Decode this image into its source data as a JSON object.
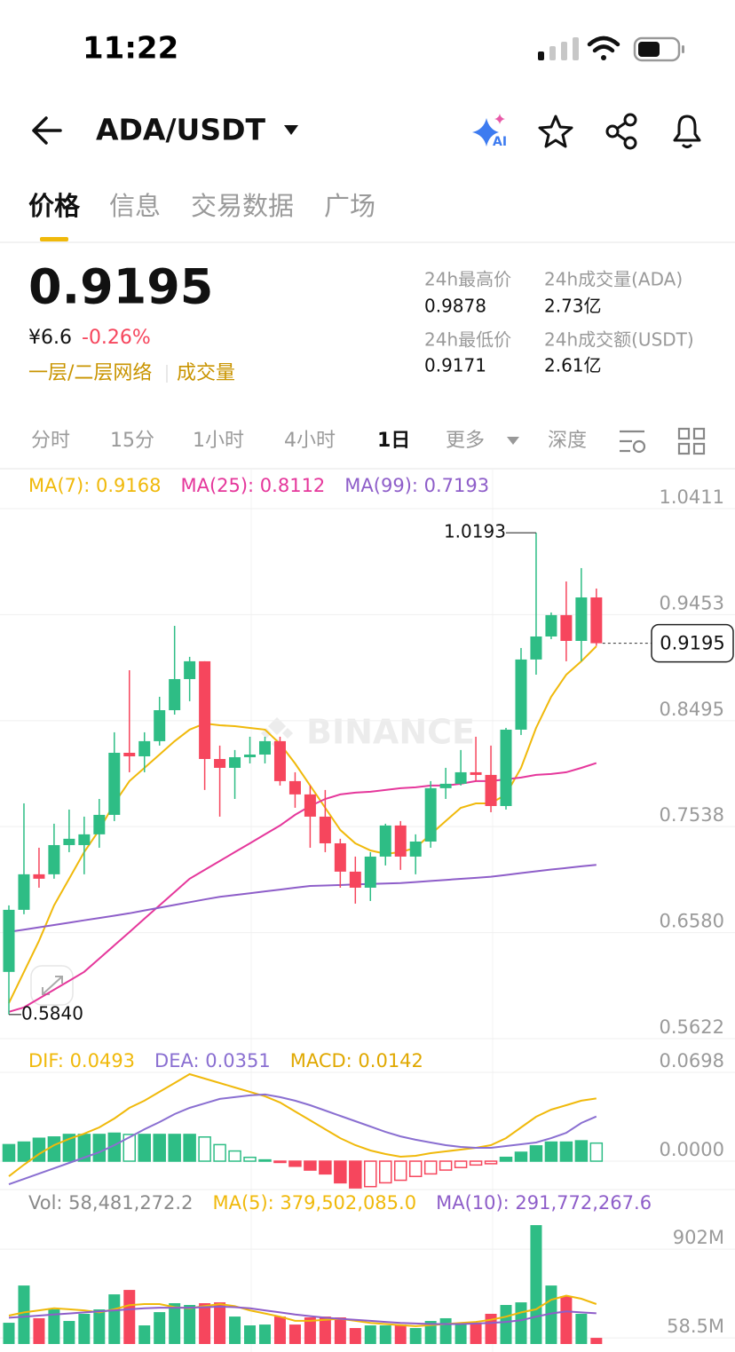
{
  "status_bar": {
    "time": "11:22"
  },
  "header": {
    "symbol": "ADA/USDT"
  },
  "tabs": [
    "价格",
    "信息",
    "交易数据",
    "广场"
  ],
  "price": {
    "last": "0.9195",
    "cny": "¥6.6",
    "change": "-0.26%",
    "tags": [
      "一层/二层网络",
      "成交量"
    ]
  },
  "stats": [
    {
      "label": "24h最高价",
      "value": "0.9878"
    },
    {
      "label": "24h成交量(ADA)",
      "value": "2.73亿"
    },
    {
      "label": "24h最低价",
      "value": "0.9171"
    },
    {
      "label": "24h成交额(USDT)",
      "value": "2.61亿"
    }
  ],
  "intervals": [
    "分时",
    "15分",
    "1小时",
    "4小时",
    "1日",
    "更多",
    "深度"
  ],
  "chart_data": [
    {
      "type": "candlestick",
      "up_color": "#2ebd85",
      "down_color": "#f6465d",
      "watermark": "BINANCE",
      "max_label": "1.0193",
      "min_label": "0.5840",
      "last_label": "0.9195",
      "ylim": [
        0.5622,
        1.0411
      ],
      "yticks": [
        1.0411,
        0.9453,
        0.8495,
        0.7538,
        {
          "value": 0.658,
          "label": "0.6580"
        },
        0.5622
      ],
      "open": [
        0.6225,
        0.6786,
        0.7107,
        0.7107,
        0.7371,
        0.7371,
        0.7468,
        0.7644,
        0.8205,
        0.8173,
        0.831,
        0.859,
        0.8871,
        0.9032,
        0.8149,
        0.8069,
        0.8165,
        0.8189,
        0.831,
        0.7949,
        0.7829,
        0.7628,
        0.7387,
        0.7131,
        0.6986,
        0.7267,
        0.7548,
        0.7267,
        0.7403,
        0.7885,
        0.7925,
        0.8029,
        0.8005,
        0.7724,
        0.8414,
        0.9048,
        0.9256,
        0.9449,
        0.9216,
        0.9609
      ],
      "high": [
        0.6826,
        0.7748,
        0.7347,
        0.7564,
        0.7692,
        0.7628,
        0.7788,
        0.839,
        0.8951,
        0.839,
        0.8711,
        0.9352,
        0.9072,
        0.9032,
        0.827,
        0.823,
        0.835,
        0.835,
        0.835,
        0.8029,
        0.7909,
        0.7869,
        0.7428,
        0.7267,
        0.7307,
        0.7564,
        0.7588,
        0.7468,
        0.7949,
        0.8069,
        0.823,
        0.835,
        0.827,
        0.843,
        0.9152,
        1.0193,
        0.9473,
        0.9753,
        0.9874,
        0.9689
      ],
      "low": [
        0.584,
        0.6746,
        0.6986,
        0.7067,
        0.7307,
        0.7107,
        0.7347,
        0.7588,
        0.8029,
        0.8029,
        0.827,
        0.855,
        0.8671,
        0.7869,
        0.7628,
        0.7788,
        0.8109,
        0.8109,
        0.7909,
        0.7708,
        0.7347,
        0.7307,
        0.6986,
        0.6842,
        0.6866,
        0.7187,
        0.7147,
        0.7107,
        0.7347,
        0.7788,
        0.7909,
        0.7949,
        0.7668,
        0.7692,
        0.8366,
        0.8911,
        0.9232,
        0.9032,
        0.9032,
        0.9171
      ],
      "close": [
        0.6786,
        0.7107,
        0.7067,
        0.7371,
        0.7428,
        0.7468,
        0.7644,
        0.8205,
        0.8173,
        0.831,
        0.859,
        0.8871,
        0.9032,
        0.8149,
        0.8069,
        0.8165,
        0.8189,
        0.831,
        0.7949,
        0.7829,
        0.7628,
        0.7387,
        0.7131,
        0.6986,
        0.7267,
        0.7548,
        0.7267,
        0.7403,
        0.7885,
        0.7925,
        0.8029,
        0.8005,
        0.7724,
        0.8414,
        0.9048,
        0.9256,
        0.9449,
        0.9216,
        0.9609,
        0.9195
      ],
      "series": [
        {
          "name": "MA(7): 0.9168",
          "color": "#f0b90b",
          "values": [
            0.5944,
            0.6225,
            0.6505,
            0.6826,
            0.7067,
            0.7307,
            0.7508,
            0.7748,
            0.7949,
            0.8069,
            0.8189,
            0.831,
            0.8414,
            0.847,
            0.8454,
            0.8446,
            0.843,
            0.8414,
            0.8286,
            0.8109,
            0.7909,
            0.7708,
            0.7508,
            0.7387,
            0.7323,
            0.7291,
            0.7307,
            0.7347,
            0.7468,
            0.7588,
            0.7708,
            0.7748,
            0.7748,
            0.7829,
            0.8069,
            0.843,
            0.8711,
            0.8911,
            0.9032,
            0.9168
          ]
        },
        {
          "name": "MA(25): 0.8112",
          "color": "#e5379b",
          "values": [
            0.5864,
            0.5904,
            0.5984,
            0.6064,
            0.6144,
            0.6225,
            0.6345,
            0.6465,
            0.6585,
            0.6706,
            0.6826,
            0.6946,
            0.7067,
            0.7147,
            0.7227,
            0.7307,
            0.7387,
            0.7468,
            0.7548,
            0.7644,
            0.7724,
            0.7788,
            0.7829,
            0.7845,
            0.7853,
            0.7869,
            0.7885,
            0.7893,
            0.7909,
            0.7909,
            0.7925,
            0.7949,
            0.7949,
            0.7965,
            0.7981,
            0.8005,
            0.8013,
            0.8029,
            0.8069,
            0.8112
          ]
        },
        {
          "name": "MA(99): 0.7193",
          "color": "#8e5ec9",
          "values": [
            0.6586,
            0.6607,
            0.6628,
            0.6649,
            0.667,
            0.6691,
            0.6712,
            0.6733,
            0.6755,
            0.678,
            0.6805,
            0.683,
            0.6855,
            0.688,
            0.6903,
            0.692,
            0.6936,
            0.6953,
            0.6969,
            0.6986,
            0.7002,
            0.7006,
            0.701,
            0.7015,
            0.7019,
            0.7024,
            0.7028,
            0.7037,
            0.7047,
            0.7056,
            0.7066,
            0.7075,
            0.7085,
            0.7101,
            0.7118,
            0.7134,
            0.715,
            0.7164,
            0.7179,
            0.7193
          ]
        }
      ]
    },
    {
      "type": "macd",
      "ylim": [
        -0.0223,
        0.0928
      ],
      "yticks": [
        0.0698,
        {
          "value": 0,
          "label": "0.0000"
        }
      ],
      "series": [
        {
          "name": "DIF: 0.0493",
          "color": "#f0b90b",
          "values": [
            -0.0119,
            -0.0028,
            0.0056,
            0.0126,
            0.0175,
            0.0216,
            0.0265,
            0.0335,
            0.0419,
            0.0475,
            0.0545,
            0.0614,
            0.0684,
            0.0649,
            0.0614,
            0.0579,
            0.0545,
            0.051,
            0.0461,
            0.0391,
            0.0321,
            0.0251,
            0.0181,
            0.0126,
            0.0084,
            0.0056,
            0.0035,
            0.0042,
            0.0063,
            0.0077,
            0.0091,
            0.0105,
            0.0126,
            0.0181,
            0.0265,
            0.0349,
            0.0405,
            0.044,
            0.0475,
            0.0493
          ]
        },
        {
          "name": "DEA: 0.0351",
          "color": "#8a6fd1",
          "values": [
            -0.0182,
            -0.014,
            -0.0098,
            -0.0056,
            -0.0014,
            0.0028,
            0.007,
            0.0126,
            0.0188,
            0.0251,
            0.0307,
            0.037,
            0.0419,
            0.0454,
            0.0489,
            0.0503,
            0.0517,
            0.0524,
            0.0503,
            0.0475,
            0.044,
            0.0398,
            0.0356,
            0.0314,
            0.0272,
            0.023,
            0.0195,
            0.0168,
            0.0147,
            0.0126,
            0.0112,
            0.0105,
            0.0105,
            0.0119,
            0.0133,
            0.0147,
            0.0181,
            0.0223,
            0.03,
            0.0351
          ]
        }
      ],
      "histogram": {
        "name": "MACD: 0.0142",
        "color": "#e0a800",
        "up_color": "#2ebd85",
        "down_color": "#f6465d",
        "values": [
          0.013,
          0.015,
          0.018,
          0.019,
          0.021,
          0.021,
          0.021,
          0.022,
          0.021,
          0.021,
          0.021,
          0.021,
          0.021,
          0.019,
          0.013,
          0.008,
          0.003,
          0.001,
          -0.001,
          -0.004,
          -0.007,
          -0.01,
          -0.017,
          -0.021,
          -0.02,
          -0.017,
          -0.015,
          -0.012,
          -0.01,
          -0.007,
          -0.005,
          -0.003,
          -0.002,
          0.003,
          0.007,
          0.012,
          0.015,
          0.015,
          0.016,
          0.0142
        ]
      }
    },
    {
      "type": "volume",
      "legend_text": "Vol: 58,481,272.2",
      "ylim": [
        0,
        1426
      ],
      "yticks": [
        {
          "value": 902,
          "label": "902M"
        },
        {
          "value": 58.5,
          "label": "58.5M"
        }
      ],
      "values": [
        202,
        556,
        245,
        329,
        219,
        287,
        329,
        472,
        514,
        177,
        303,
        388,
        371,
        388,
        396,
        261,
        177,
        185,
        261,
        185,
        253,
        261,
        253,
        152,
        177,
        177,
        185,
        152,
        219,
        245,
        202,
        202,
        287,
        371,
        396,
        1130,
        556,
        455,
        287,
        58.48
      ],
      "series": [
        {
          "name": "MA(5): 379,502,085.0",
          "color": "#f0b90b",
          "values": [
            270,
            300,
            320,
            340,
            330,
            320,
            300,
            330,
            370,
            380,
            380,
            350,
            340,
            360,
            380,
            360,
            320,
            290,
            260,
            220,
            220,
            230,
            240,
            220,
            200,
            190,
            180,
            170,
            180,
            190,
            200,
            210,
            230,
            260,
            300,
            330,
            420,
            460,
            430,
            379.5
          ]
        },
        {
          "name": "MA(10): 291,772,267.6",
          "color": "#8e5ec9",
          "values": [
            250,
            260,
            270,
            280,
            290,
            300,
            310,
            320,
            330,
            340,
            345,
            345,
            345,
            350,
            355,
            350,
            340,
            320,
            300,
            280,
            265,
            250,
            240,
            230,
            220,
            210,
            200,
            195,
            190,
            190,
            190,
            195,
            200,
            210,
            225,
            260,
            290,
            310,
            300,
            291.8
          ]
        }
      ]
    }
  ]
}
